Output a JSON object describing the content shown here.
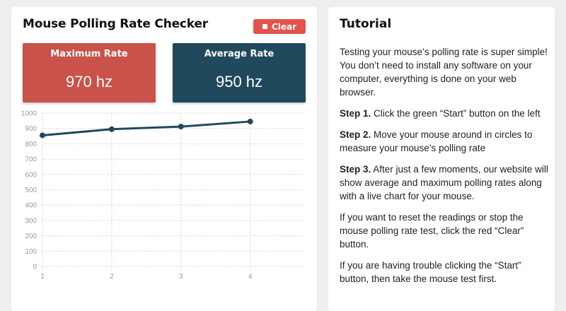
{
  "checker": {
    "title": "Mouse Polling Rate Checker",
    "clear_label": "Clear",
    "max": {
      "label": "Maximum Rate",
      "value": "970 hz"
    },
    "avg": {
      "label": "Average Rate",
      "value": "950 hz"
    }
  },
  "colors": {
    "clear_button": "#e4534a",
    "max_box": "#c9524a",
    "avg_box": "#21495c",
    "line": "#21495c"
  },
  "icons": {
    "clear": "stop-icon"
  },
  "chart_data": {
    "type": "line",
    "x": [
      1,
      2,
      3,
      4
    ],
    "series": [
      {
        "values": [
          855,
          895,
          912,
          945
        ]
      }
    ],
    "ylim": [
      0,
      1000
    ],
    "yticks": [
      0,
      100,
      200,
      300,
      400,
      500,
      600,
      700,
      800,
      900,
      1000
    ],
    "xticks": [
      1,
      2,
      3,
      4
    ],
    "grid": true
  },
  "tutorial": {
    "title": "Tutorial",
    "intro": "Testing your mouse’s polling rate is super simple! You don’t need to install any software on your computer, everything is done on your web browser.",
    "steps": [
      {
        "label": "Step 1.",
        "text": " Click the green “Start” button on the left"
      },
      {
        "label": "Step 2.",
        "text": " Move your mouse around in circles to measure your mouse’s polling rate"
      },
      {
        "label": "Step 3.",
        "text": " After just a few moments, our website will show average and maximum polling rates along with a live chart for your mouse."
      }
    ],
    "reset_note": "If you want to reset the readings or stop the mouse polling rate test, click the red “Clear” button.",
    "trouble_note": "If you are having trouble clicking the “Start” button, then take the mouse test first."
  }
}
